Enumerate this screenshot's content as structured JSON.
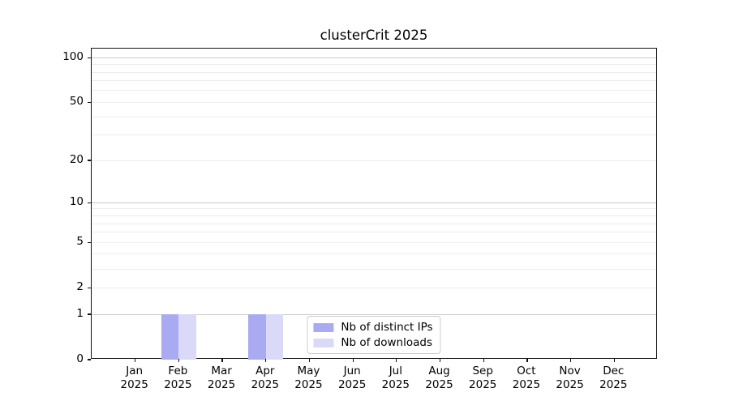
{
  "chart_data": {
    "type": "bar",
    "title": "clusterCrit 2025",
    "xlabel": "",
    "ylabel": "",
    "x_ticks": [
      {
        "month": "Jan",
        "year": "2025"
      },
      {
        "month": "Feb",
        "year": "2025"
      },
      {
        "month": "Mar",
        "year": "2025"
      },
      {
        "month": "Apr",
        "year": "2025"
      },
      {
        "month": "May",
        "year": "2025"
      },
      {
        "month": "Jun",
        "year": "2025"
      },
      {
        "month": "Jul",
        "year": "2025"
      },
      {
        "month": "Aug",
        "year": "2025"
      },
      {
        "month": "Sep",
        "year": "2025"
      },
      {
        "month": "Oct",
        "year": "2025"
      },
      {
        "month": "Nov",
        "year": "2025"
      },
      {
        "month": "Dec",
        "year": "2025"
      }
    ],
    "series": [
      {
        "name": "Nb of distinct IPs",
        "color": "#aaaaf2",
        "values": [
          0,
          1,
          0,
          1,
          0,
          0,
          0,
          0,
          0,
          0,
          0,
          0
        ]
      },
      {
        "name": "Nb of downloads",
        "color": "#dadaf8",
        "values": [
          0,
          1,
          0,
          1,
          0,
          0,
          0,
          0,
          0,
          0,
          0,
          0
        ]
      }
    ],
    "y_scale": "log1p",
    "y_axis": {
      "range": [
        0,
        115
      ],
      "major_ticks": [
        0,
        1,
        2,
        5,
        10,
        20,
        50,
        100
      ],
      "major_grid_values": [
        1,
        10,
        100
      ],
      "minor_grid_values": [
        2,
        3,
        4,
        5,
        6,
        7,
        8,
        9,
        20,
        30,
        40,
        50,
        60,
        70,
        80,
        90
      ]
    },
    "legend": {
      "location": "lower center",
      "entries": [
        "Nb of distinct IPs",
        "Nb of downloads"
      ]
    },
    "grid": true
  },
  "colors": {
    "background": "#ffffff",
    "spine": "#111111",
    "major_grid": "#c9c9c9",
    "minor_grid": "#ededed",
    "legend_border": "#cccccc",
    "text": "#000000"
  }
}
